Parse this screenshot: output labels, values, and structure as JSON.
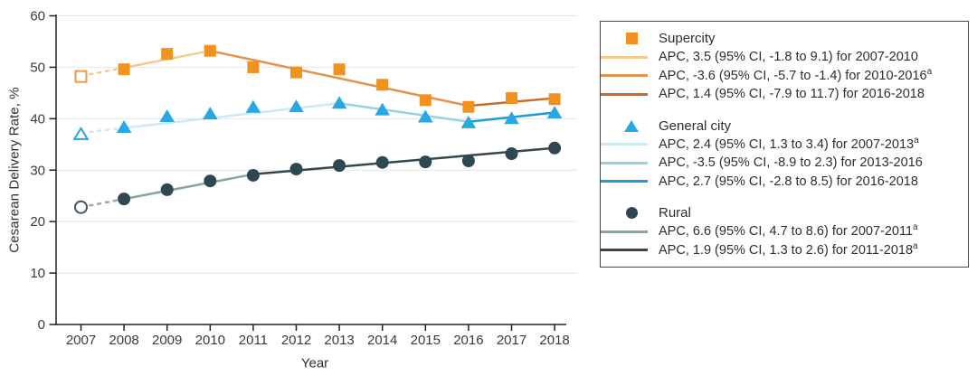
{
  "figure": {
    "y_axis_label": "Cesarean Delivery Rate, %",
    "x_axis_label": "Year",
    "y_ticks": [
      0,
      10,
      20,
      30,
      40,
      50,
      60
    ],
    "x_ticks": [
      "2007",
      "2008",
      "2009",
      "2010",
      "2011",
      "2012",
      "2013",
      "2014",
      "2015",
      "2016",
      "2017",
      "2018"
    ]
  },
  "chart_data": {
    "type": "line",
    "title": "",
    "xlabel": "Year",
    "ylabel": "Cesarean Delivery Rate, %",
    "ylim": [
      0,
      60
    ],
    "grid": "horizontal",
    "legend_position": "right",
    "x": [
      2007,
      2008,
      2009,
      2010,
      2011,
      2012,
      2013,
      2014,
      2015,
      2016,
      2017,
      2018
    ],
    "note": "2007 markers are open (hollow) and joined to 2008 by dashed fitted line",
    "series": [
      {
        "name": "Supercity",
        "marker": "square",
        "marker_color": "#F0921F",
        "open_first_marker": true,
        "open_marker_stroke": "#E89C44",
        "values": [
          48.2,
          49.6,
          52.6,
          53.2,
          50.0,
          49.0,
          49.6,
          46.6,
          43.6,
          42.3,
          44.0,
          43.8
        ],
        "trend_segments": [
          {
            "x1": 2007,
            "v1": 48.3,
            "x2": 2008,
            "v2": 49.9,
            "color": "#F4CB8E",
            "dashed": true
          },
          {
            "x1": 2008,
            "v1": 49.9,
            "x2": 2010,
            "v2": 53.2,
            "color": "#F4CB8E",
            "dashed": false
          },
          {
            "x1": 2010,
            "v1": 53.2,
            "x2": 2016,
            "v2": 42.5,
            "color": "#E0954F",
            "dashed": false
          },
          {
            "x1": 2016,
            "v1": 42.5,
            "x2": 2018,
            "v2": 44.0,
            "color": "#CC6B28",
            "dashed": false
          }
        ]
      },
      {
        "name": "General city",
        "marker": "triangle",
        "marker_color": "#29A7E0",
        "open_first_marker": true,
        "open_marker_stroke": "#2FA3DC",
        "values": [
          37.0,
          38.4,
          40.5,
          41.0,
          42.3,
          42.4,
          43.1,
          41.8,
          40.4,
          39.3,
          40.1,
          41.2
        ],
        "trend_segments": [
          {
            "x1": 2007,
            "v1": 37.2,
            "x2": 2008,
            "v2": 38.2,
            "color": "#CFE8F3",
            "dashed": true
          },
          {
            "x1": 2008,
            "v1": 38.2,
            "x2": 2013,
            "v2": 43.0,
            "color": "#CFE8F3",
            "dashed": false
          },
          {
            "x1": 2013,
            "v1": 43.0,
            "x2": 2016,
            "v2": 39.4,
            "color": "#99D0E2",
            "dashed": false
          },
          {
            "x1": 2016,
            "v1": 39.4,
            "x2": 2018,
            "v2": 41.2,
            "color": "#1C9CD8",
            "dashed": false
          }
        ]
      },
      {
        "name": "Rural",
        "marker": "circle",
        "marker_color": "#2E4752",
        "open_first_marker": true,
        "open_marker_stroke": "#45545B",
        "values": [
          22.8,
          24.4,
          26.2,
          27.9,
          29.0,
          30.2,
          30.9,
          31.5,
          31.6,
          31.8,
          33.2,
          34.3
        ],
        "trend_segments": [
          {
            "x1": 2007,
            "v1": 22.8,
            "x2": 2008,
            "v2": 24.4,
            "color": "#9AA9AD",
            "dashed": true
          },
          {
            "x1": 2008,
            "v1": 24.4,
            "x2": 2011,
            "v2": 29.2,
            "color": "#8AA3A8",
            "dashed": false
          },
          {
            "x1": 2011,
            "v1": 29.2,
            "x2": 2018,
            "v2": 34.3,
            "color": "#36474F",
            "dashed": false
          }
        ]
      }
    ]
  },
  "legend": {
    "groups": [
      {
        "name": "Supercity",
        "marker": "square",
        "marker_color": "#F0921F",
        "entries": [
          {
            "text": "APC, 3.5 (95% CI, -1.8 to 9.1) for 2007-2010",
            "sup": "",
            "color": "#F4CB8E"
          },
          {
            "text": "APC, -3.6 (95% CI, -5.7 to -1.4) for 2010-2016",
            "sup": "a",
            "color": "#E0954F"
          },
          {
            "text": "APC, 1.4 (95% CI, -7.9 to 11.7) for 2016-2018",
            "sup": "",
            "color": "#CC6B28"
          }
        ]
      },
      {
        "name": "General city",
        "marker": "triangle",
        "marker_color": "#29A7E0",
        "entries": [
          {
            "text": "APC, 2.4 (95% CI, 1.3 to 3.4) for 2007-2013",
            "sup": "a",
            "color": "#CFE8F3"
          },
          {
            "text": "APC, -3.5 (95% CI, -8.9 to 2.3) for 2013-2016",
            "sup": "",
            "color": "#99D0E2"
          },
          {
            "text": "APC, 2.7 (95% CI, -2.8 to 8.5) for 2016-2018",
            "sup": "",
            "color": "#1C9CD8"
          }
        ]
      },
      {
        "name": "Rural",
        "marker": "circle",
        "marker_color": "#2E4752",
        "entries": [
          {
            "text": "APC, 6.6 (95% CI, 4.7 to 8.6) for 2007-2011",
            "sup": "a",
            "color": "#8AA3A8"
          },
          {
            "text": "APC, 1.9 (95% CI, 1.3 to 2.6) for 2011-2018",
            "sup": "a",
            "color": "#36474F"
          }
        ]
      }
    ]
  }
}
